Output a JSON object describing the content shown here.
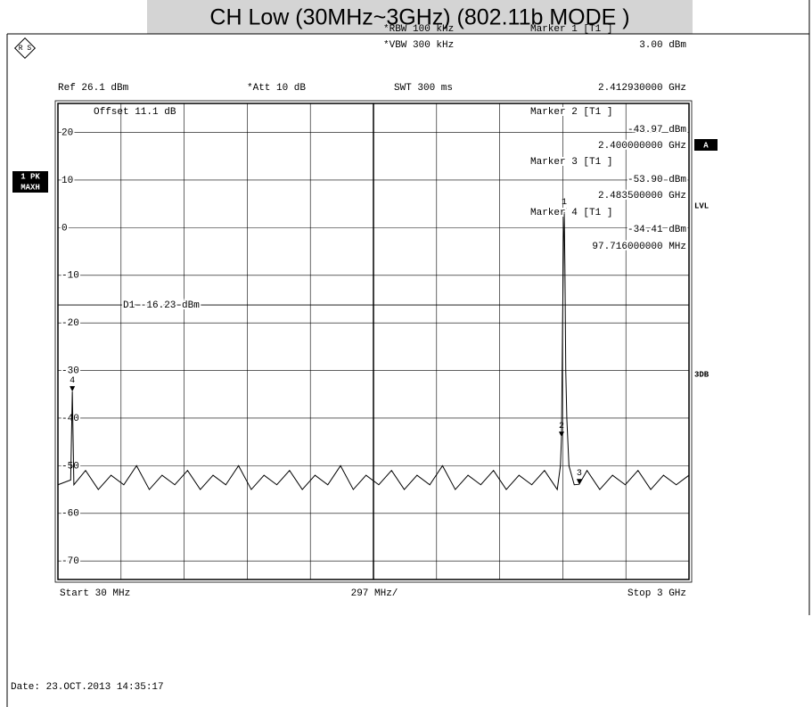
{
  "chart_data": {
    "type": "line",
    "title": "CH Low (30MHz~3GHz) (802.11b MODE )",
    "rbw": "*RBW 100 kHz",
    "vbw": "*VBW 300 kHz",
    "swt": "SWT 300 ms",
    "ref": "Ref  26.1 dBm",
    "att": "*Att  10 dB",
    "offset": "Offset  11.1 dB",
    "trace_mode": [
      "1 PK",
      "MAXH"
    ],
    "side_labels": {
      "a": "A",
      "lvl": "LVL",
      "db": "3DB"
    },
    "start": "Start  30 MHz",
    "span_per_div": "297 MHz/",
    "stop": "Stop  3 GHz",
    "date": "Date: 23.OCT.2013  14:35:17",
    "display_line": {
      "label": "D1 -16.23 dBm",
      "value": -16.23
    },
    "xlim": [
      30,
      3000
    ],
    "ylim": [
      -73.9,
      26.1
    ],
    "yticks": [
      20,
      10,
      0,
      -10,
      -20,
      -30,
      -40,
      -50,
      -60,
      -70
    ],
    "grid": true,
    "color": "#000000",
    "x": [
      30,
      90,
      97.716,
      105,
      160,
      220,
      280,
      340,
      400,
      460,
      520,
      580,
      640,
      700,
      760,
      820,
      880,
      940,
      1000,
      1060,
      1120,
      1180,
      1240,
      1300,
      1360,
      1420,
      1480,
      1540,
      1600,
      1660,
      1720,
      1780,
      1840,
      1900,
      1960,
      2020,
      2080,
      2140,
      2200,
      2260,
      2320,
      2380,
      2395,
      2400,
      2405,
      2410,
      2412.93,
      2416,
      2420,
      2425,
      2435,
      2460,
      2483.5,
      2520,
      2580,
      2640,
      2700,
      2760,
      2820,
      2880,
      2940,
      3000
    ],
    "values": [
      -54,
      -53,
      -34.41,
      -54,
      -51,
      -55,
      -52,
      -54,
      -50,
      -55,
      -52,
      -54,
      -51,
      -55,
      -52,
      -54,
      -50,
      -55,
      -52,
      -54,
      -51,
      -55,
      -52,
      -54,
      -50,
      -55,
      -52,
      -54,
      -51,
      -55,
      -52,
      -54,
      -50,
      -55,
      -52,
      -54,
      -51,
      -55,
      -52,
      -54,
      -51,
      -55,
      -50,
      -43.97,
      -20,
      -2,
      3,
      -8,
      -30,
      -40,
      -50,
      -54,
      -53.9,
      -51,
      -55,
      -52,
      -54,
      -51,
      -55,
      -52,
      -54,
      -52
    ],
    "markers": [
      {
        "name": "Marker 1 [T1 ]",
        "tag": "1",
        "x": 2412.93,
        "value": 3.0,
        "value_label": "3.00 dBm",
        "x_label": "2.412930000 GHz"
      },
      {
        "name": "Marker 2 [T1 ]",
        "tag": "2",
        "x": 2400,
        "value": -43.97,
        "value_label": "-43.97 dBm",
        "x_label": "2.400000000 GHz"
      },
      {
        "name": "Marker 3 [T1 ]",
        "tag": "3",
        "x": 2483.5,
        "value": -53.9,
        "value_label": "-53.90 dBm",
        "x_label": "2.483500000 GHz"
      },
      {
        "name": "Marker 4 [T1 ]",
        "tag": "4",
        "x": 97.716,
        "value": -34.41,
        "value_label": "-34.41 dBm",
        "x_label": "97.716000000 MHz"
      }
    ]
  }
}
